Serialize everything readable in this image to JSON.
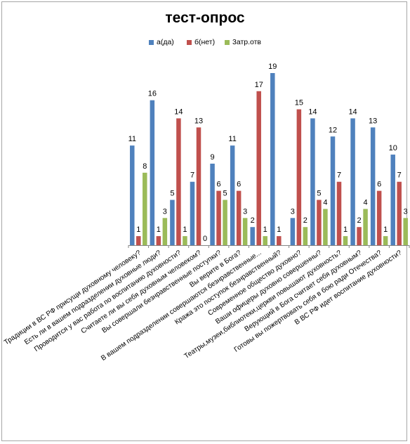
{
  "chart_data": {
    "type": "bar",
    "title": "тест-опрос",
    "categories": [
      "Традиции в ВС РФ присущи духовному человеку?",
      "Есть ли в вашем подразделении духовные люди?",
      "Проводится у вас работа по воспитанию духовности?",
      "Считаете ли вы себя духовным человеком?",
      "Вы совершали безнравственные поступки?",
      "Вы верите в Бога?",
      "В вашем подразделении совершаются безнравственные...",
      "Кража это поступок безнравственный?",
      "Современное общество духовно?",
      "Ваши офицеры духовно совершенны?",
      "Театры,музеи,библиотеки,церкви повышают духовность?",
      "Верующий в Бога считает себя духовным?",
      "Готовы вы пожертвовать себя в бою ради Отечества?",
      "В ВС РФ идет воспитание духовности?"
    ],
    "series": [
      {
        "name": "а(да)",
        "color": "#4f81bd",
        "values": [
          11,
          16,
          5,
          7,
          9,
          11,
          2,
          19,
          3,
          14,
          12,
          14,
          13,
          10
        ]
      },
      {
        "name": "б(нет)",
        "color": "#c0504d",
        "values": [
          1,
          1,
          14,
          13,
          6,
          6,
          17,
          1,
          15,
          5,
          7,
          2,
          6,
          7
        ]
      },
      {
        "name": "3атр.отв",
        "color": "#9bbb59",
        "values": [
          8,
          3,
          1,
          0,
          5,
          3,
          1,
          0,
          2,
          4,
          1,
          4,
          1,
          3
        ]
      }
    ],
    "data_labels": [
      [
        "11",
        "1",
        "8"
      ],
      [
        "16",
        "1",
        "3"
      ],
      [
        "5",
        "14",
        "1"
      ],
      [
        "7",
        "13",
        "0"
      ],
      [
        "9",
        "6",
        "5"
      ],
      [
        "11",
        "6",
        "3"
      ],
      [
        "2",
        "17",
        "1"
      ],
      [
        "19",
        "1",
        ""
      ],
      [
        "3",
        "15",
        "2"
      ],
      [
        "14",
        "5",
        "4"
      ],
      [
        "12",
        "7",
        "1"
      ],
      [
        "14",
        "2",
        "4"
      ],
      [
        "13",
        "6",
        "1"
      ],
      [
        "10",
        "7",
        "3"
      ]
    ],
    "ylim": [
      0,
      19
    ],
    "grid": false,
    "legend": "top"
  }
}
